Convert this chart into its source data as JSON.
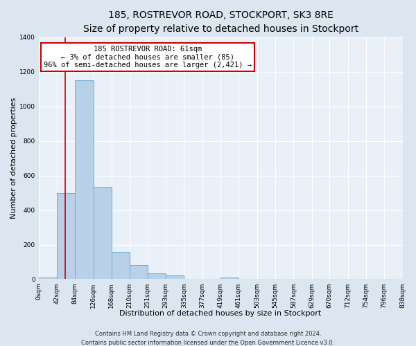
{
  "title": "185, ROSTREVOR ROAD, STOCKPORT, SK3 8RE",
  "subtitle": "Size of property relative to detached houses in Stockport",
  "xlabel": "Distribution of detached houses by size in Stockport",
  "ylabel": "Number of detached properties",
  "footnote1": "Contains HM Land Registry data © Crown copyright and database right 2024.",
  "footnote2": "Contains public sector information licensed under the Open Government Licence v3.0.",
  "bin_edges": [
    0,
    42,
    84,
    126,
    168,
    210,
    251,
    293,
    335,
    377,
    419,
    461,
    503,
    545,
    587,
    629,
    670,
    712,
    754,
    796,
    838
  ],
  "bar_heights": [
    10,
    500,
    1150,
    535,
    160,
    83,
    35,
    20,
    0,
    0,
    10,
    0,
    0,
    0,
    0,
    0,
    0,
    0,
    0,
    0
  ],
  "bar_color": "#b8d0e8",
  "bar_edge_color": "#6aaed6",
  "property_line_x": 61,
  "property_line_color": "#cc0000",
  "annotation_text": "185 ROSTREVOR ROAD: 61sqm\n← 3% of detached houses are smaller (85)\n96% of semi-detached houses are larger (2,421) →",
  "annotation_box_color": "#ffffff",
  "annotation_box_edge_color": "#cc0000",
  "ylim": [
    0,
    1400
  ],
  "yticks": [
    0,
    200,
    400,
    600,
    800,
    1000,
    1200,
    1400
  ],
  "xtick_labels": [
    "0sqm",
    "42sqm",
    "84sqm",
    "126sqm",
    "168sqm",
    "210sqm",
    "251sqm",
    "293sqm",
    "335sqm",
    "377sqm",
    "419sqm",
    "461sqm",
    "503sqm",
    "545sqm",
    "587sqm",
    "629sqm",
    "670sqm",
    "712sqm",
    "754sqm",
    "796sqm",
    "838sqm"
  ],
  "background_color": "#dce6f0",
  "plot_background_color": "#eaf0f8",
  "grid_color": "#ffffff",
  "title_fontsize": 10,
  "subtitle_fontsize": 9,
  "axis_label_fontsize": 8,
  "tick_fontsize": 6.5,
  "annotation_fontsize": 7.5,
  "footnote_fontsize": 6
}
